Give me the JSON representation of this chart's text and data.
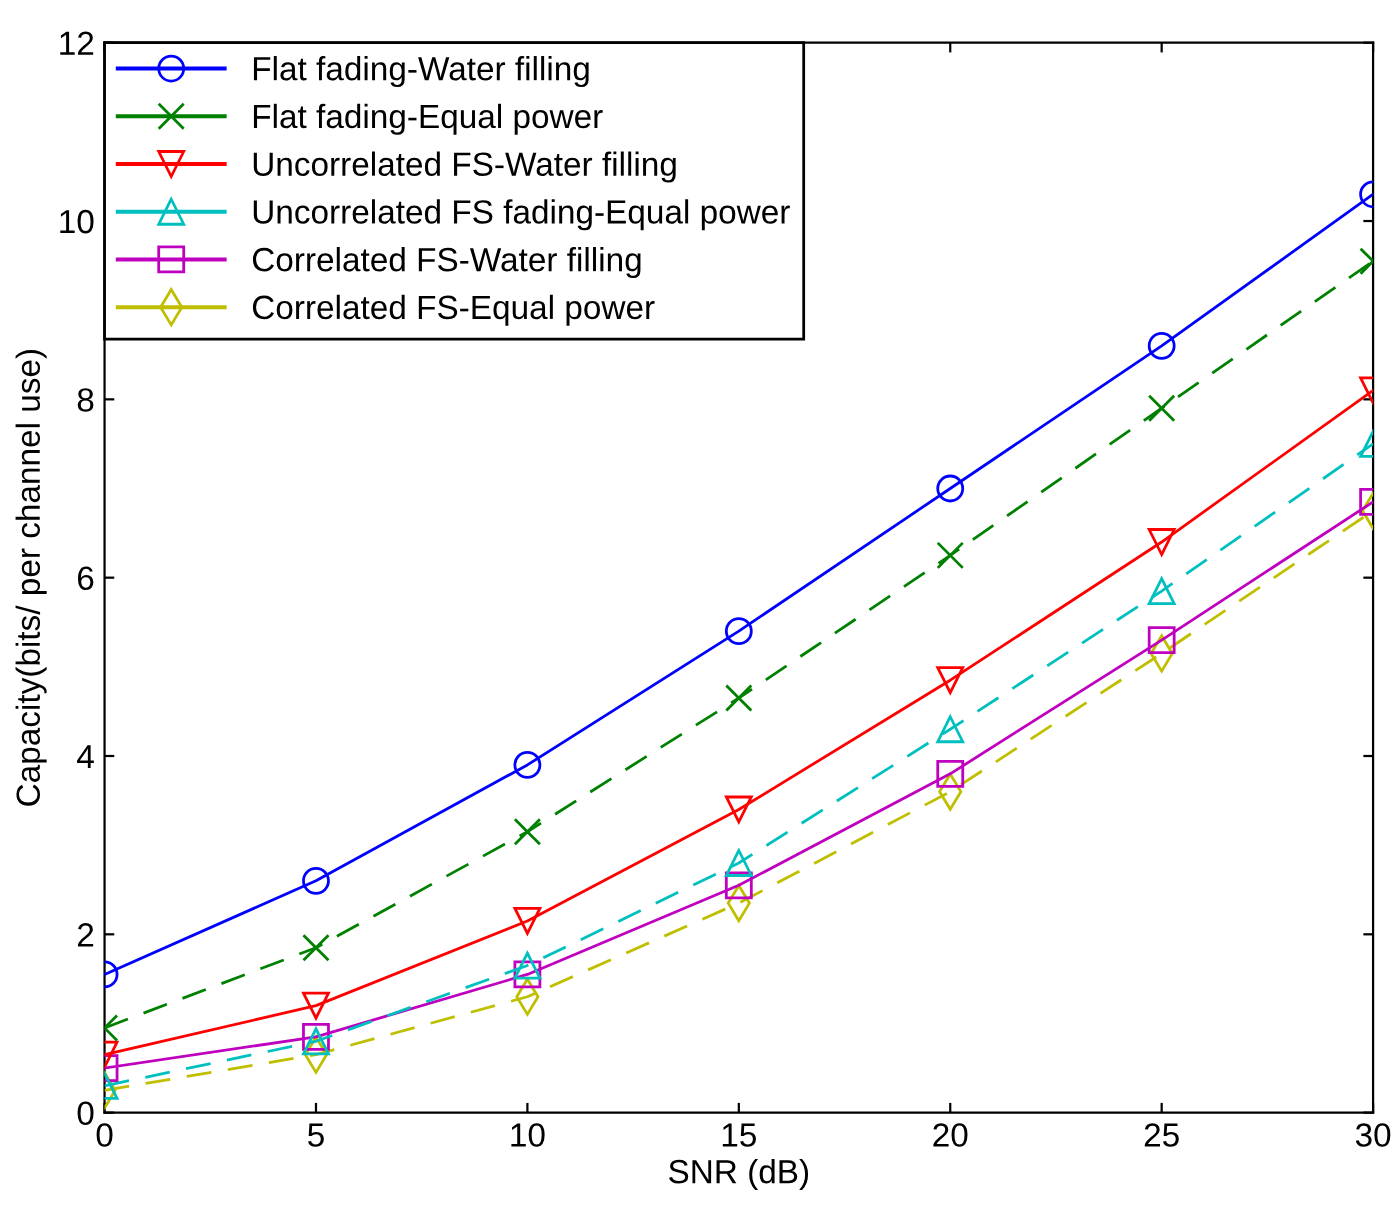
{
  "chart_data": {
    "type": "line",
    "xlabel": "SNR (dB)",
    "ylabel": "Capacity(bits/ per channel use)",
    "x": [
      0,
      5,
      10,
      15,
      20,
      25,
      30
    ],
    "xlim": [
      0,
      30
    ],
    "xticks": [
      0,
      5,
      10,
      15,
      20,
      25,
      30
    ],
    "ylim": [
      0,
      12
    ],
    "yticks": [
      0,
      2,
      4,
      6,
      8,
      10,
      12
    ],
    "grid": false,
    "legend": "top left",
    "series": [
      {
        "name": "Flat fading-Water filling",
        "color": "#0000ff",
        "marker": "circle",
        "line_style": "solid",
        "values": [
          1.55,
          2.6,
          3.9,
          5.4,
          7.0,
          8.6,
          10.3
        ]
      },
      {
        "name": "Flat fading-Equal power",
        "color": "#008000",
        "marker": "cross",
        "line_style": "dashed",
        "values": [
          0.95,
          1.85,
          3.15,
          4.65,
          6.25,
          7.9,
          9.55
        ]
      },
      {
        "name": "Uncorrelated FS-Water filling",
        "color": "#ff0000",
        "marker": "triangle_down",
        "line_style": "solid",
        "values": [
          0.65,
          1.2,
          2.15,
          3.4,
          4.85,
          6.4,
          8.1
        ]
      },
      {
        "name": "Uncorrelated FS fading-Equal power",
        "color": "#00bfbf",
        "marker": "triangle",
        "line_style": "dashed",
        "values": [
          0.3,
          0.8,
          1.65,
          2.8,
          4.3,
          5.85,
          7.5
        ]
      },
      {
        "name": "Correlated FS-Water filling",
        "color": "#bf00bf",
        "marker": "square",
        "line_style": "solid",
        "values": [
          0.5,
          0.85,
          1.55,
          2.55,
          3.8,
          5.3,
          6.85
        ]
      },
      {
        "name": "Correlated FS-Equal power",
        "color": "#bfbf00",
        "marker": "diamond",
        "line_style": "dashed",
        "values": [
          0.25,
          0.65,
          1.3,
          2.35,
          3.6,
          5.15,
          6.75
        ]
      }
    ]
  }
}
